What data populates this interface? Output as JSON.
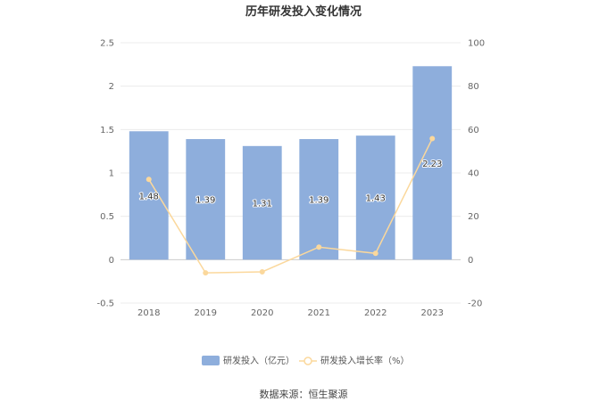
{
  "chart_data": {
    "type": "bar",
    "title": "历年研发投入变化情况",
    "categories": [
      "2018",
      "2019",
      "2020",
      "2021",
      "2022",
      "2023"
    ],
    "series": [
      {
        "name": "研发投入（亿元）",
        "type": "bar",
        "axis": "left",
        "color": "#8eaedc",
        "values": [
          1.48,
          1.39,
          1.31,
          1.39,
          1.43,
          2.23
        ]
      },
      {
        "name": "研发投入增长率（%）",
        "type": "line",
        "axis": "right",
        "color": "#fbd89c",
        "values": [
          37.0,
          -6.1,
          -5.6,
          5.8,
          2.9,
          55.8
        ]
      }
    ],
    "left_axis": {
      "ylim": [
        -0.5,
        2.5
      ],
      "ticks": [
        "-0.5",
        "0",
        "0.5",
        "1",
        "1.5",
        "2",
        "2.5"
      ]
    },
    "right_axis": {
      "ylim": [
        -20,
        100
      ],
      "ticks": [
        "-20",
        "0",
        "20",
        "40",
        "60",
        "80",
        "100"
      ]
    },
    "grid": true,
    "legend_position": "bottom",
    "source": "数据来源：恒生聚源"
  }
}
